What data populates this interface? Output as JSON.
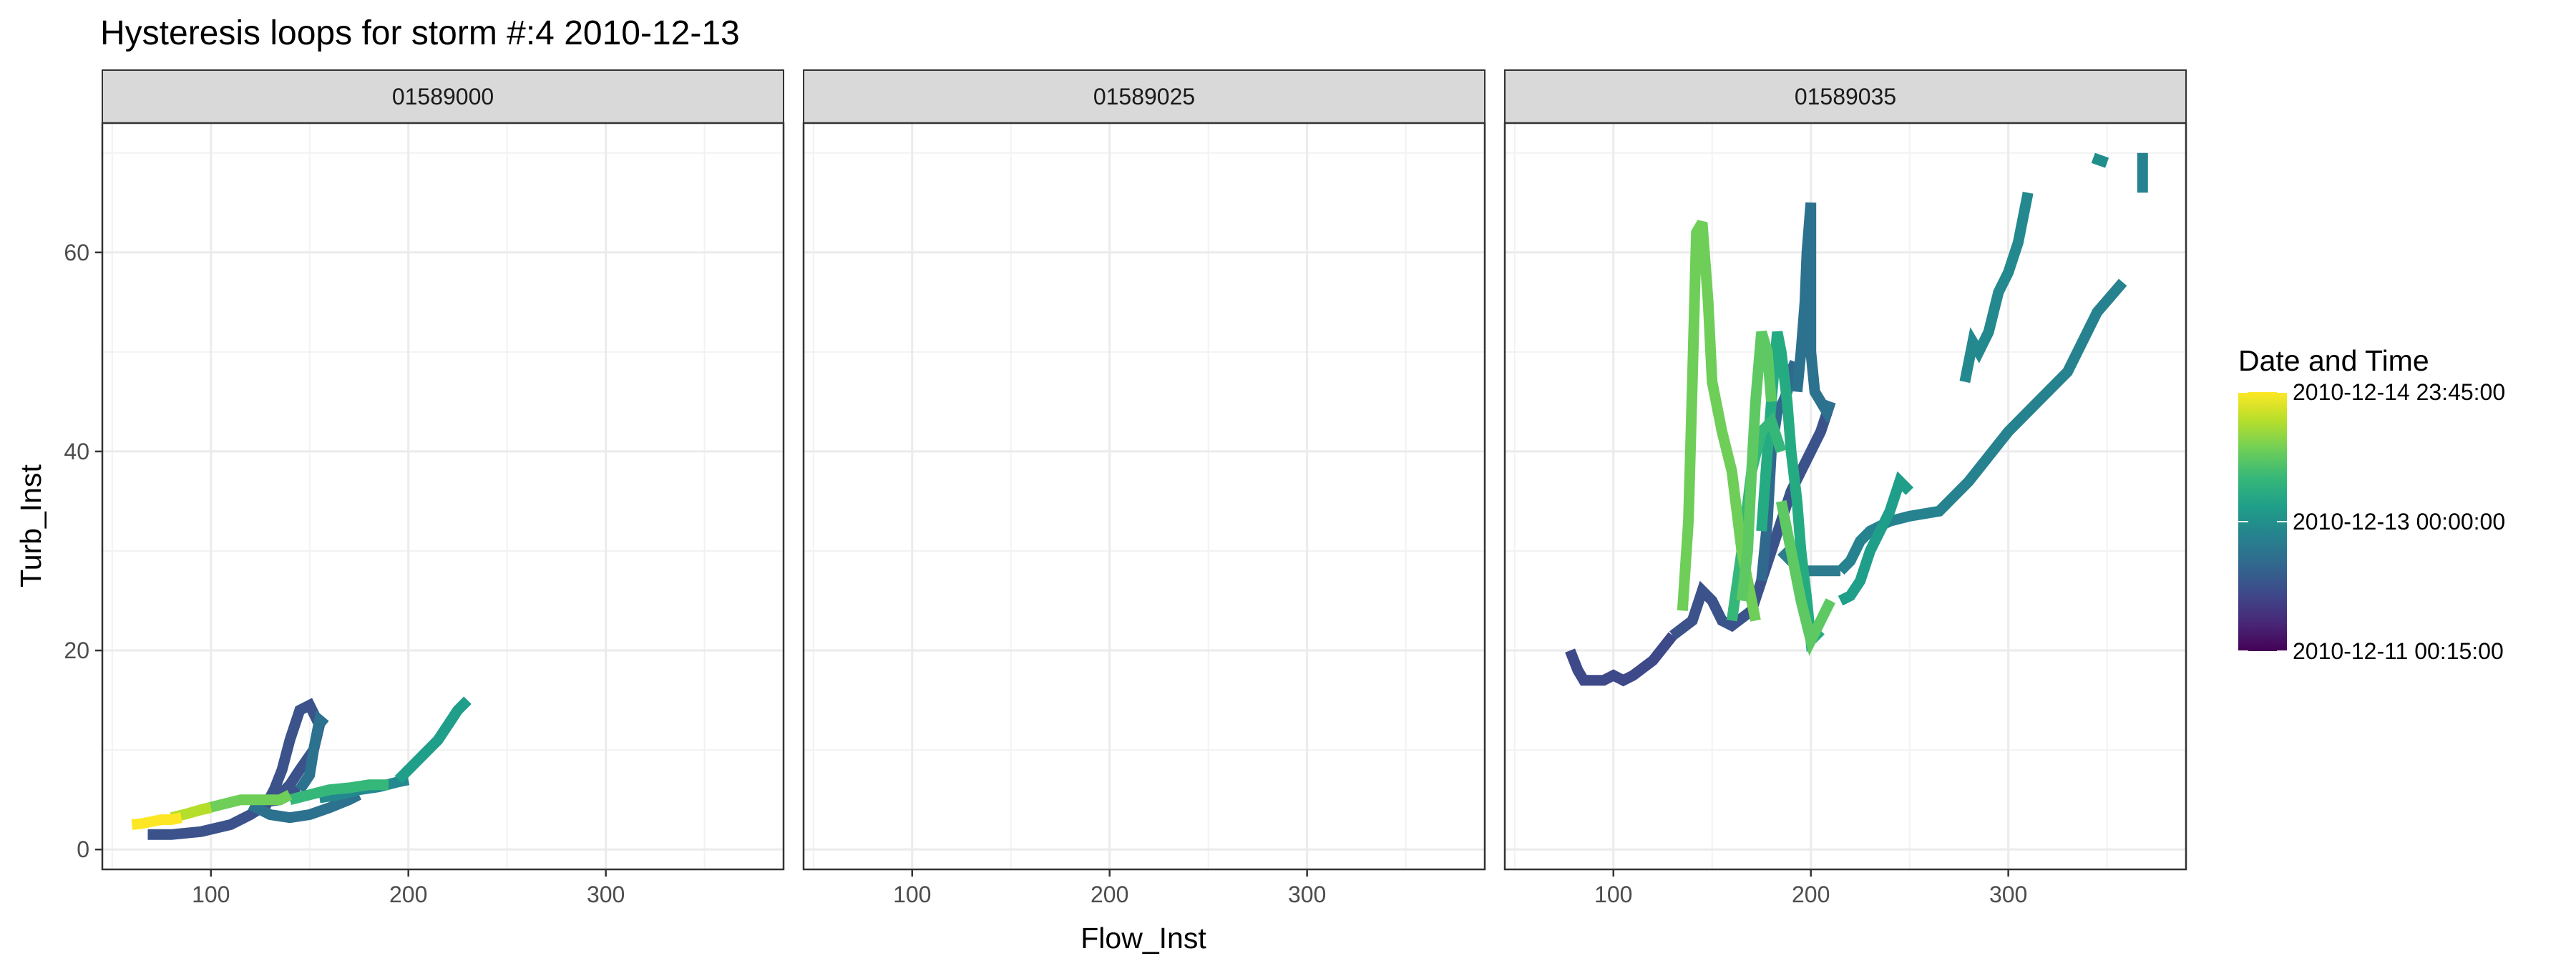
{
  "chart_data": {
    "type": "line",
    "title": "Hysteresis loops for storm #:4   2010-12-13",
    "xlabel": "Flow_Inst",
    "ylabel": "Turb_Inst",
    "xlim": [
      45,
      390
    ],
    "ylim": [
      -2,
      73
    ],
    "x_ticks": [
      "100",
      "200",
      "300"
    ],
    "x_tick_values": [
      100,
      200,
      300
    ],
    "y_ticks": [
      "0",
      "20",
      "40",
      "60"
    ],
    "y_tick_values": [
      0,
      20,
      40,
      60
    ],
    "grid": true,
    "legend": {
      "title": "Date and Time",
      "placement": "right",
      "labels": [
        "2010-12-14 23:45:00",
        "2010-12-13 00:00:00",
        "2010-12-11 00:15:00"
      ],
      "label_positions": [
        1.0,
        0.5,
        0.0
      ],
      "colors": [
        "#fde725",
        "#b5de2b",
        "#6ece58",
        "#35b779",
        "#1f9e89",
        "#26828e",
        "#31688e",
        "#3e4989",
        "#482878",
        "#440154"
      ]
    },
    "panels": [
      {
        "name": "01589000",
        "series": [
          {
            "color": "#3b528b",
            "x": [
              68,
              80,
              95,
              110,
              120,
              128,
              132,
              136,
              140,
              145,
              150,
              155,
              152,
              145,
              140,
              135,
              130,
              128,
              135,
              140,
              145
            ],
            "y": [
              1.5,
              1.5,
              1.8,
              2.5,
              3.5,
              4.5,
              6.0,
              8.0,
              11.0,
              14.0,
              14.5,
              12.5,
              10.0,
              8.0,
              6.5,
              5.5,
              5.0,
              4.8,
              5.0,
              5.5,
              6.0
            ]
          },
          {
            "color": "#2c718e",
            "x": [
              145,
              150,
              152,
              155,
              158
            ],
            "y": [
              6.0,
              7.5,
              10.0,
              13.0,
              12.5
            ]
          },
          {
            "color": "#2c718e",
            "x": [
              120,
              130,
              140,
              150,
              160,
              170,
              175
            ],
            "y": [
              4.5,
              3.5,
              3.2,
              3.5,
              4.2,
              5.0,
              5.5
            ]
          },
          {
            "color": "#23898e",
            "x": [
              155,
              165,
              175,
              185,
              195,
              200
            ],
            "y": [
              5.2,
              5.5,
              6.0,
              6.3,
              6.8,
              7.0
            ]
          },
          {
            "color": "#1f9e89",
            "x": [
              195,
              200,
              205,
              210,
              215,
              220,
              225,
              230
            ],
            "y": [
              7.0,
              8.0,
              9.0,
              10.0,
              11.0,
              12.5,
              14.0,
              15.0
            ]
          },
          {
            "color": "#35b779",
            "x": [
              140,
              150,
              160,
              170,
              180,
              190
            ],
            "y": [
              5.0,
              5.5,
              6.0,
              6.2,
              6.5,
              6.5
            ]
          },
          {
            "color": "#6ece58",
            "x": [
              95,
              105,
              115,
              125,
              135,
              140
            ],
            "y": [
              4.0,
              4.5,
              5.0,
              5.0,
              5.0,
              5.5
            ]
          },
          {
            "color": "#b5de2b",
            "x": [
              80,
              88,
              95,
              100
            ],
            "y": [
              3.2,
              3.6,
              4.0,
              4.2
            ]
          },
          {
            "color": "#fde725",
            "x": [
              60,
              65,
              70,
              75,
              80,
              85
            ],
            "y": [
              2.5,
              2.6,
              2.8,
              3.0,
              3.0,
              3.2
            ]
          }
        ]
      },
      {
        "name": "01589025",
        "series": []
      },
      {
        "name": "01589035",
        "series": [
          {
            "color": "#3e4989",
            "x": [
              78,
              80,
              82,
              85,
              90,
              95,
              100,
              105,
              110,
              120,
              130
            ],
            "y": [
              20.0,
              19.0,
              18.0,
              17.0,
              17.0,
              17.0,
              17.5,
              17.0,
              17.5,
              19.0,
              21.5
            ]
          },
          {
            "color": "#3b528b",
            "x": [
              130,
              140,
              145,
              150,
              155,
              160,
              170,
              175,
              180,
              185,
              190,
              195,
              200,
              205,
              210
            ],
            "y": [
              21.5,
              23.0,
              26.0,
              25.0,
              23.0,
              22.5,
              24.0,
              27.0,
              30.0,
              33.0,
              36.0,
              38.0,
              40.0,
              42.0,
              45.0
            ]
          },
          {
            "color": "#31688e",
            "x": [
              175,
              178,
              180,
              183,
              186,
              188,
              190,
              192
            ],
            "y": [
              27.0,
              33.0,
              40.0,
              44.0,
              45.0,
              46.0,
              48.0,
              49.0
            ]
          },
          {
            "color": "#2c728e",
            "x": [
              193,
              195,
              197,
              198,
              200,
              200,
              202,
              205,
              208,
              210
            ],
            "y": [
              46.0,
              50.0,
              55.0,
              60.0,
              65.0,
              50.0,
              46.0,
              45.0,
              44.0,
              45.0
            ]
          },
          {
            "color": "#2c7c8e",
            "x": [
              185,
              190,
              195,
              200,
              210,
              215
            ],
            "y": [
              30.0,
              29.0,
              28.0,
              28.0,
              28.0,
              28.0
            ]
          },
          {
            "color": "#26828e",
            "x": [
              215,
              220,
              225,
              230,
              240,
              250,
              265,
              280,
              300,
              315,
              330,
              345,
              358
            ],
            "y": [
              28.0,
              29.0,
              31.0,
              32.0,
              33.0,
              33.5,
              34.0,
              37.0,
              42.0,
              45.0,
              48.0,
              54.0,
              57.0
            ]
          },
          {
            "color": "#23898e",
            "x": [
              278,
              282,
              285,
              290,
              295,
              300,
              305,
              310
            ],
            "y": [
              47.0,
              51.0,
              50.0,
              52.0,
              56.0,
              58.0,
              61.0,
              66.0
            ]
          },
          {
            "color": "#208f8c",
            "x": [
              343,
              350
            ],
            "y": [
              69.5,
              69.0
            ]
          },
          {
            "color": "#26828e",
            "x": [
              368,
              368
            ],
            "y": [
              66.0,
              70.0
            ]
          },
          {
            "color": "#1f9e89",
            "x": [
              215,
              220,
              225,
              230,
              235,
              240,
              245,
              250
            ],
            "y": [
              25.0,
              25.5,
              27.0,
              30.0,
              32.0,
              34.0,
              37.0,
              36.0
            ]
          },
          {
            "color": "#25ab82",
            "x": [
              175,
              178,
              180,
              183,
              185,
              188,
              190,
              193,
              195,
              198,
              200,
              205
            ],
            "y": [
              32.0,
              40.0,
              45.0,
              52.0,
              50.0,
              45.0,
              40.0,
              35.0,
              30.0,
              25.0,
              21.0,
              22.0
            ]
          },
          {
            "color": "#35b779",
            "x": [
              160,
              165,
              170,
              175,
              180,
              185
            ],
            "y": [
              23.0,
              30.0,
              38.0,
              42.0,
              43.0,
              40.0
            ]
          },
          {
            "color": "#5ec962",
            "x": [
              185,
              190,
              195,
              200,
              205,
              210
            ],
            "y": [
              35.0,
              30.0,
              25.0,
              21.0,
              23.0,
              25.0
            ]
          },
          {
            "color": "#6ece58",
            "x": [
              135,
              138,
              140,
              142,
              145,
              148,
              150,
              155,
              160,
              165,
              170,
              172
            ],
            "y": [
              24.0,
              33.0,
              47.0,
              62.0,
              63.0,
              55.0,
              47.0,
              42.0,
              38.0,
              30.0,
              25.0,
              23.0
            ]
          },
          {
            "color": "#5ec962",
            "x": [
              165,
              168,
              170,
              172,
              175,
              178,
              180
            ],
            "y": [
              25.0,
              30.0,
              38.0,
              45.0,
              52.0,
              50.0,
              45.0
            ]
          }
        ]
      }
    ]
  }
}
